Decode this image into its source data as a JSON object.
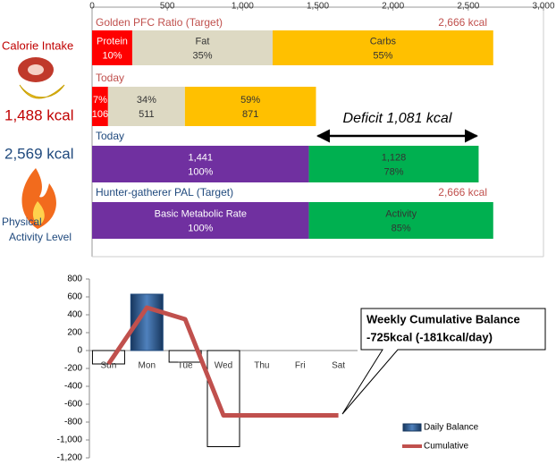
{
  "sidebar": {
    "intake_title": "Calorie Intake",
    "intake_value": "1,488 kcal",
    "burn_value": "2,569 kcal",
    "activity_title": [
      "Physical",
      "Activity Level"
    ]
  },
  "chart_data": [
    {
      "type": "stacked-hbar",
      "xlim": [
        0,
        3000
      ],
      "xticks": [
        0,
        500,
        {
          "value": 1000,
          "label": "1,000"
        },
        {
          "value": 1500,
          "label": "1,500"
        },
        {
          "value": 2000,
          "label": "2,000"
        },
        {
          "value": 2500,
          "label": "2,500"
        },
        {
          "value": 3000,
          "label": "3,000"
        }
      ],
      "rows": [
        {
          "label": "Golden PFC Ratio (Target)",
          "label_color": "#c0504d",
          "total_label": "2,666 kcal",
          "segments": [
            {
              "value": 267,
              "color": "#ff0000",
              "text_color": "#ffffff",
              "labels": [
                "Protein",
                "10%"
              ]
            },
            {
              "value": 933,
              "color": "#ddd9c3",
              "text_color": "#333333",
              "labels": [
                "Fat",
                "35%"
              ]
            },
            {
              "value": 1466,
              "color": "#ffc000",
              "text_color": "#333333",
              "labels": [
                "Carbs",
                "55%"
              ]
            }
          ]
        },
        {
          "label": "Today",
          "label_color": "#c0504d",
          "segments": [
            {
              "value": 106,
              "color": "#ff0000",
              "text_color": "#ffffff",
              "labels": [
                "7%",
                "106"
              ]
            },
            {
              "value": 511,
              "color": "#ddd9c3",
              "text_color": "#333333",
              "labels": [
                "34%",
                "511"
              ]
            },
            {
              "value": 871,
              "color": "#ffc000",
              "text_color": "#333333",
              "labels": [
                "59%",
                "871"
              ]
            }
          ]
        },
        {
          "label": "Today",
          "label_color": "#1f497d",
          "segments": [
            {
              "value": 1441,
              "color": "#7030a0",
              "text_color": "#ffffff",
              "labels": [
                "1,441",
                "100%"
              ]
            },
            {
              "value": 1128,
              "color": "#00b050",
              "text_color": "#333333",
              "labels": [
                "1,128",
                "78%"
              ]
            }
          ]
        },
        {
          "label": "Hunter-gatherer PAL (Target)",
          "label_color": "#1f497d",
          "total_label": "2,666 kcal",
          "segments": [
            {
              "value": 1441,
              "color": "#7030a0",
              "text_color": "#ffffff",
              "labels": [
                "Basic Metabolic Rate",
                "100%"
              ]
            },
            {
              "value": 1225,
              "color": "#00b050",
              "text_color": "#333333",
              "labels": [
                "Activity",
                "85%"
              ]
            }
          ]
        }
      ],
      "annotation": {
        "text": "Deficit 1,081 kcal",
        "from": 1488,
        "to": 2569
      }
    },
    {
      "type": "combo",
      "categories": [
        "Sun",
        "Mon",
        "Tue",
        "Wed",
        "Thu",
        "Fri",
        "Sat"
      ],
      "ylim": [
        -1200,
        800
      ],
      "yticks": [
        {
          "value": -1200,
          "label": "-1,200"
        },
        {
          "value": -1000,
          "label": "-1,000"
        },
        -800,
        -600,
        -400,
        -200,
        0,
        200,
        400,
        600,
        800
      ],
      "series": [
        {
          "name": "Daily Balance",
          "kind": "bar",
          "color": "#1f497d",
          "negative_color": "#ffffff",
          "values": [
            -150,
            630,
            -130,
            -1075,
            null,
            null,
            null
          ]
        },
        {
          "name": "Cumulative",
          "kind": "line",
          "color": "#c0504d",
          "values": [
            -150,
            480,
            350,
            -725,
            -725,
            -725,
            -725
          ]
        }
      ],
      "callout": [
        "Weekly Cumulative Balance",
        "-725kcal (-181kcal/day)"
      ]
    }
  ]
}
